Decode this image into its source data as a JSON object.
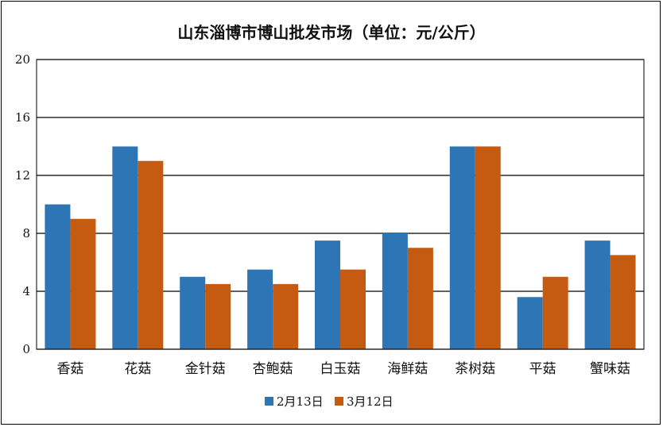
{
  "chart_data": {
    "type": "bar",
    "title": "山东淄博市博山批发市场（单位：元/公斤）",
    "categories": [
      "香菇",
      "花菇",
      "金针菇",
      "杏鲍菇",
      "白玉菇",
      "海鲜菇",
      "茶树菇",
      "平菇",
      "蟹味菇"
    ],
    "series": [
      {
        "name": "2月13日",
        "values": [
          10,
          14,
          5,
          5.5,
          7.5,
          8,
          14,
          3.6,
          7.5
        ],
        "color": "#2e75b6"
      },
      {
        "name": "3月12日",
        "values": [
          9,
          13,
          4.5,
          4.5,
          5.5,
          7,
          14,
          5,
          6.5
        ],
        "color": "#c55a11"
      }
    ],
    "ylim": [
      0,
      20
    ],
    "yticks": [
      "0",
      "4",
      "8",
      "12",
      "16",
      "20"
    ],
    "grid": true,
    "legend": "bottom"
  }
}
